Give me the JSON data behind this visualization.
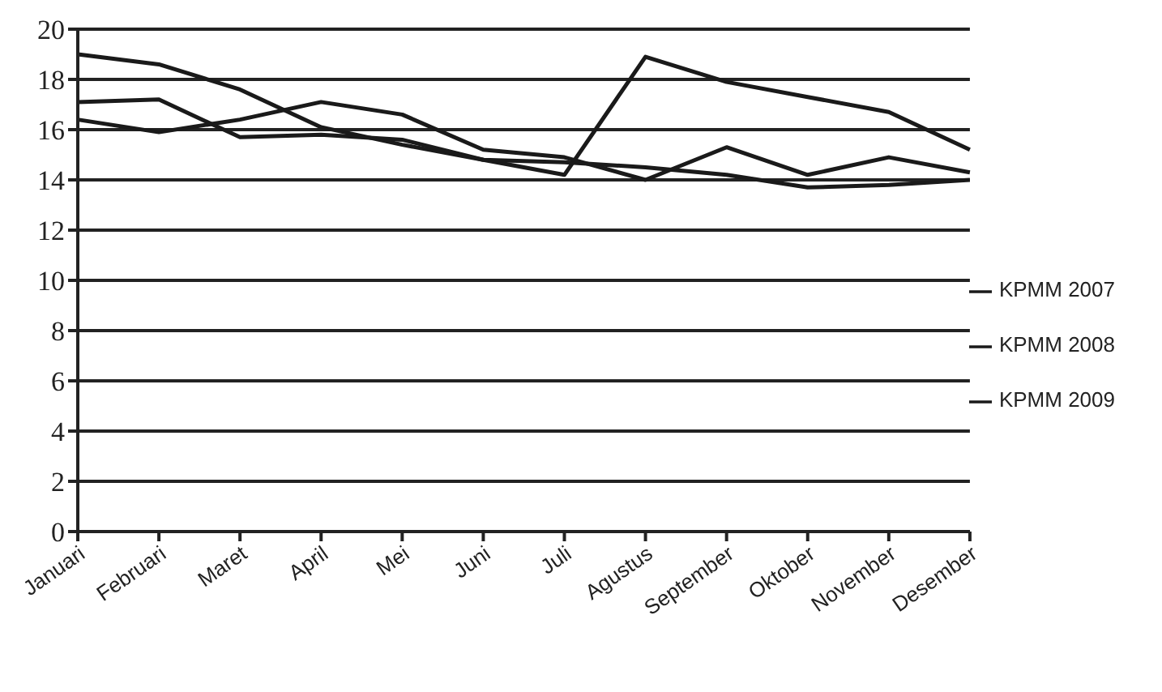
{
  "chart_data": {
    "type": "line",
    "categories": [
      "Januari",
      "Februari",
      "Maret",
      "April",
      "Mei",
      "Juni",
      "Juli",
      "Agustus",
      "September",
      "Oktober",
      "November",
      "Desember"
    ],
    "series": [
      {
        "name": "KPMM 2007",
        "color": "#1a1a1a",
        "values": [
          19.0,
          18.6,
          17.6,
          16.1,
          15.4,
          14.8,
          14.2,
          18.9,
          17.9,
          17.3,
          16.7,
          15.2
        ]
      },
      {
        "name": "KPMM 2008",
        "color": "#1a1a1a",
        "values": [
          17.1,
          17.2,
          15.7,
          15.8,
          15.6,
          14.8,
          14.7,
          14.5,
          14.2,
          13.7,
          13.8,
          14.0
        ]
      },
      {
        "name": "KPMM 2009",
        "color": "#1a1a1a",
        "values": [
          16.4,
          15.9,
          16.4,
          17.1,
          16.6,
          15.2,
          14.9,
          14.0,
          15.3,
          14.2,
          14.9,
          14.3
        ]
      }
    ],
    "ylim": [
      0,
      20
    ],
    "yticks": [
      0,
      2,
      4,
      6,
      8,
      10,
      12,
      14,
      16,
      18,
      20
    ],
    "grid": "y",
    "legend": "right",
    "marker": "none",
    "line_style": "solid"
  }
}
